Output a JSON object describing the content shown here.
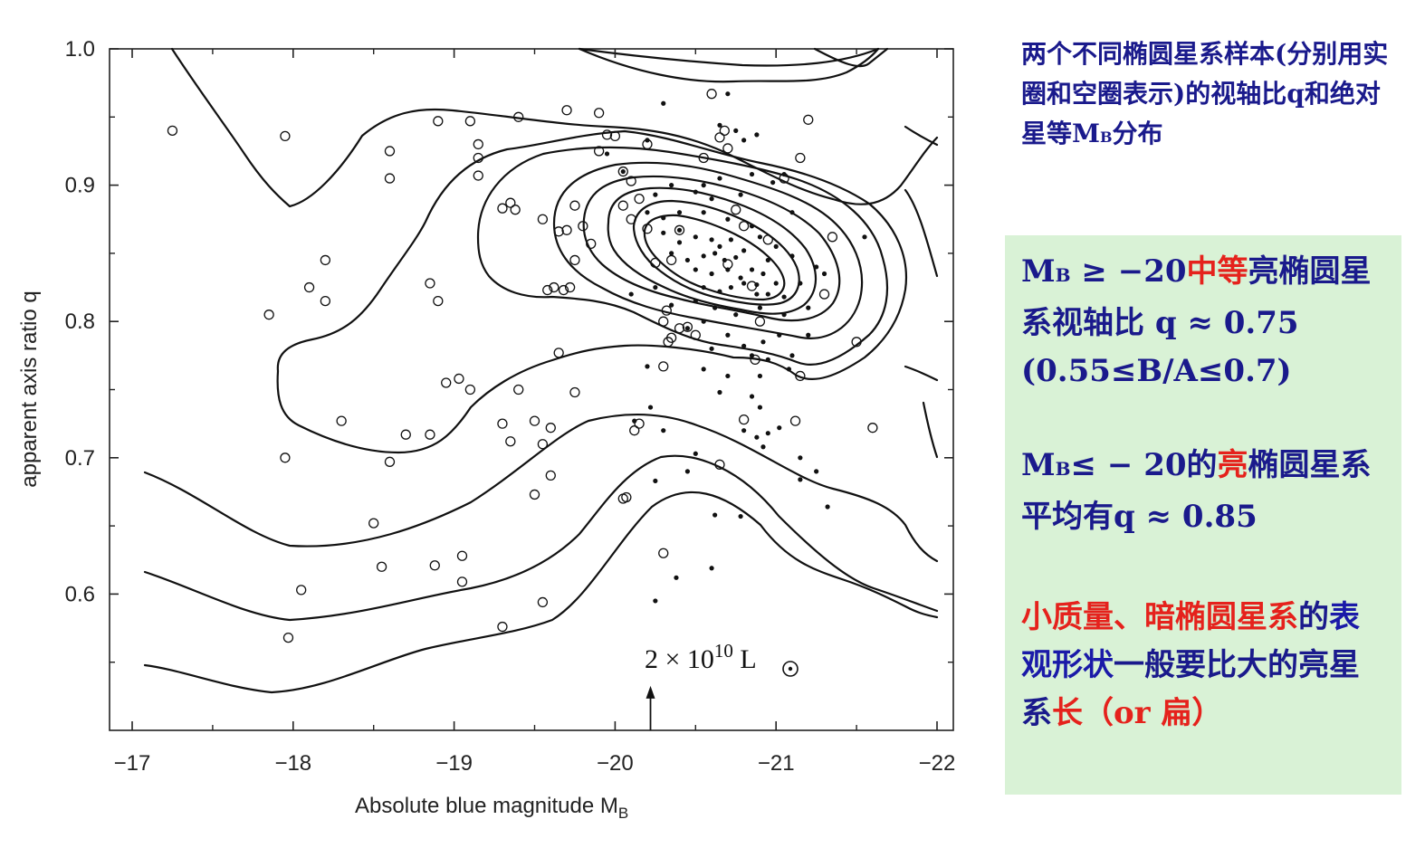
{
  "chart_data": {
    "type": "scatter",
    "xlabel_main": "Absolute blue magnitude  M",
    "xlabel_sub": "B",
    "ylabel": "apparent axis ratio  q",
    "xlim": [
      -16.9,
      -22.1
    ],
    "ylim": [
      0.5,
      1.0
    ],
    "x_ticks": [
      -17,
      -18,
      -19,
      -20,
      -21,
      -22
    ],
    "x_tick_labels": [
      "−17",
      "−18",
      "−19",
      "−20",
      "−21",
      "−22"
    ],
    "y_ticks": [
      0.6,
      0.7,
      0.8,
      0.9,
      1.0
    ],
    "y_tick_labels": [
      "0.6",
      "0.7",
      "0.8",
      "0.9",
      "1.0"
    ],
    "annotation": {
      "prefix": "2 × 10",
      "exponent": "10",
      "suffix": " L",
      "x": -20.22,
      "y_arrow": [
        0.6,
        0.53
      ]
    },
    "series": [
      {
        "marker": "open-circle",
        "points": [
          [
            -17.25,
            0.94
          ],
          [
            -17.95,
            0.936
          ],
          [
            -17.85,
            0.805
          ],
          [
            -18.1,
            0.825
          ],
          [
            -18.2,
            0.845
          ],
          [
            -18.2,
            0.815
          ],
          [
            -18.6,
            0.925
          ],
          [
            -18.6,
            0.905
          ],
          [
            -18.3,
            0.727
          ],
          [
            -17.95,
            0.7
          ],
          [
            -18.6,
            0.697
          ],
          [
            -18.5,
            0.652
          ],
          [
            -18.55,
            0.62
          ],
          [
            -18.05,
            0.603
          ],
          [
            -17.97,
            0.568
          ],
          [
            -18.9,
            0.947
          ],
          [
            -19.1,
            0.947
          ],
          [
            -19.15,
            0.92
          ],
          [
            -19.15,
            0.93
          ],
          [
            -19.15,
            0.907
          ],
          [
            -19.4,
            0.95
          ],
          [
            -19.7,
            0.955
          ],
          [
            -19.9,
            0.953
          ],
          [
            -19.3,
            0.883
          ],
          [
            -19.35,
            0.887
          ],
          [
            -19.38,
            0.882
          ],
          [
            -19.55,
            0.875
          ],
          [
            -19.65,
            0.866
          ],
          [
            -19.7,
            0.867
          ],
          [
            -19.75,
            0.845
          ],
          [
            -19.62,
            0.825
          ],
          [
            -19.72,
            0.825
          ],
          [
            -19.68,
            0.823
          ],
          [
            -19.58,
            0.823
          ],
          [
            -19.75,
            0.885
          ],
          [
            -19.8,
            0.87
          ],
          [
            -19.85,
            0.857
          ],
          [
            -19.9,
            0.925
          ],
          [
            -19.95,
            0.937
          ],
          [
            -20.0,
            0.936
          ],
          [
            -20.05,
            0.885
          ],
          [
            -20.05,
            0.91
          ],
          [
            -20.1,
            0.875
          ],
          [
            -20.2,
            0.93
          ],
          [
            -20.1,
            0.903
          ],
          [
            -20.2,
            0.868
          ],
          [
            -20.15,
            0.89
          ],
          [
            -18.85,
            0.828
          ],
          [
            -18.9,
            0.815
          ],
          [
            -18.95,
            0.755
          ],
          [
            -19.03,
            0.758
          ],
          [
            -19.1,
            0.75
          ],
          [
            -19.4,
            0.75
          ],
          [
            -19.5,
            0.727
          ],
          [
            -19.6,
            0.722
          ],
          [
            -19.75,
            0.748
          ],
          [
            -19.65,
            0.777
          ],
          [
            -18.85,
            0.717
          ],
          [
            -18.7,
            0.717
          ],
          [
            -19.3,
            0.725
          ],
          [
            -19.35,
            0.712
          ],
          [
            -19.55,
            0.71
          ],
          [
            -19.6,
            0.687
          ],
          [
            -19.5,
            0.673
          ],
          [
            -18.88,
            0.621
          ],
          [
            -19.05,
            0.628
          ],
          [
            -19.05,
            0.609
          ],
          [
            -19.55,
            0.594
          ],
          [
            -19.3,
            0.576
          ],
          [
            -20.05,
            0.67
          ],
          [
            -20.07,
            0.671
          ],
          [
            -20.12,
            0.72
          ],
          [
            -20.15,
            0.725
          ],
          [
            -20.3,
            0.63
          ],
          [
            -20.4,
            0.867
          ],
          [
            -20.35,
            0.845
          ],
          [
            -20.25,
            0.843
          ],
          [
            -20.4,
            0.795
          ],
          [
            -20.45,
            0.796
          ],
          [
            -20.35,
            0.788
          ],
          [
            -20.33,
            0.785
          ],
          [
            -20.3,
            0.8
          ],
          [
            -20.32,
            0.808
          ],
          [
            -20.5,
            0.79
          ],
          [
            -20.3,
            0.767
          ],
          [
            -20.6,
            0.967
          ],
          [
            -20.55,
            0.92
          ],
          [
            -20.65,
            0.935
          ],
          [
            -20.68,
            0.94
          ],
          [
            -20.7,
            0.927
          ],
          [
            -20.75,
            0.882
          ],
          [
            -20.8,
            0.87
          ],
          [
            -20.7,
            0.842
          ],
          [
            -20.85,
            0.826
          ],
          [
            -20.95,
            0.86
          ],
          [
            -21.05,
            0.905
          ],
          [
            -21.15,
            0.92
          ],
          [
            -21.2,
            0.948
          ],
          [
            -21.35,
            0.862
          ],
          [
            -21.3,
            0.82
          ],
          [
            -21.5,
            0.785
          ],
          [
            -21.15,
            0.76
          ],
          [
            -21.12,
            0.727
          ],
          [
            -20.9,
            0.8
          ],
          [
            -20.87,
            0.772
          ],
          [
            -20.8,
            0.728
          ],
          [
            -20.65,
            0.695
          ],
          [
            -21.6,
            0.722
          ]
        ]
      },
      {
        "marker": "filled-dot",
        "points": [
          [
            -20.7,
            0.967
          ],
          [
            -20.3,
            0.96
          ],
          [
            -20.65,
            0.944
          ],
          [
            -20.75,
            0.94
          ],
          [
            -20.88,
            0.937
          ],
          [
            -20.2,
            0.933
          ],
          [
            -20.8,
            0.933
          ],
          [
            -20.05,
            0.91
          ],
          [
            -20.35,
            0.9
          ],
          [
            -20.55,
            0.9
          ],
          [
            -20.65,
            0.905
          ],
          [
            -20.85,
            0.908
          ],
          [
            -21.05,
            0.908
          ],
          [
            -20.25,
            0.893
          ],
          [
            -20.5,
            0.895
          ],
          [
            -20.6,
            0.89
          ],
          [
            -20.78,
            0.893
          ],
          [
            -20.98,
            0.902
          ],
          [
            -20.2,
            0.88
          ],
          [
            -20.3,
            0.876
          ],
          [
            -20.4,
            0.88
          ],
          [
            -20.55,
            0.88
          ],
          [
            -20.7,
            0.875
          ],
          [
            -20.85,
            0.87
          ],
          [
            -21.1,
            0.88
          ],
          [
            -20.3,
            0.865
          ],
          [
            -20.4,
            0.858
          ],
          [
            -20.5,
            0.862
          ],
          [
            -20.6,
            0.86
          ],
          [
            -20.65,
            0.855
          ],
          [
            -20.72,
            0.86
          ],
          [
            -20.9,
            0.862
          ],
          [
            -21.0,
            0.855
          ],
          [
            -20.35,
            0.85
          ],
          [
            -20.45,
            0.845
          ],
          [
            -20.55,
            0.848
          ],
          [
            -20.62,
            0.85
          ],
          [
            -20.68,
            0.845
          ],
          [
            -20.75,
            0.847
          ],
          [
            -20.8,
            0.852
          ],
          [
            -20.95,
            0.845
          ],
          [
            -21.1,
            0.848
          ],
          [
            -21.25,
            0.84
          ],
          [
            -21.3,
            0.835
          ],
          [
            -20.5,
            0.838
          ],
          [
            -20.6,
            0.835
          ],
          [
            -20.7,
            0.838
          ],
          [
            -20.78,
            0.832
          ],
          [
            -20.85,
            0.838
          ],
          [
            -20.92,
            0.835
          ],
          [
            -21.0,
            0.828
          ],
          [
            -21.15,
            0.828
          ],
          [
            -20.55,
            0.825
          ],
          [
            -20.65,
            0.822
          ],
          [
            -20.72,
            0.825
          ],
          [
            -20.8,
            0.828
          ],
          [
            -20.88,
            0.82
          ],
          [
            -20.95,
            0.82
          ],
          [
            -21.05,
            0.818
          ],
          [
            -21.2,
            0.81
          ],
          [
            -20.1,
            0.82
          ],
          [
            -20.25,
            0.825
          ],
          [
            -20.35,
            0.812
          ],
          [
            -20.5,
            0.815
          ],
          [
            -20.62,
            0.81
          ],
          [
            -20.75,
            0.805
          ],
          [
            -20.9,
            0.81
          ],
          [
            -21.05,
            0.805
          ],
          [
            -21.2,
            0.79
          ],
          [
            -20.45,
            0.795
          ],
          [
            -20.55,
            0.8
          ],
          [
            -20.7,
            0.79
          ],
          [
            -20.8,
            0.782
          ],
          [
            -20.92,
            0.785
          ],
          [
            -21.02,
            0.79
          ],
          [
            -20.6,
            0.78
          ],
          [
            -20.85,
            0.775
          ],
          [
            -20.95,
            0.772
          ],
          [
            -21.1,
            0.775
          ],
          [
            -20.55,
            0.765
          ],
          [
            -20.7,
            0.76
          ],
          [
            -20.9,
            0.76
          ],
          [
            -21.08,
            0.765
          ],
          [
            -20.2,
            0.767
          ],
          [
            -20.65,
            0.748
          ],
          [
            -20.85,
            0.745
          ],
          [
            -20.9,
            0.737
          ],
          [
            -20.8,
            0.72
          ],
          [
            -20.88,
            0.715
          ],
          [
            -20.95,
            0.718
          ],
          [
            -21.02,
            0.722
          ],
          [
            -20.92,
            0.708
          ],
          [
            -21.15,
            0.7
          ],
          [
            -21.25,
            0.69
          ],
          [
            -20.22,
            0.737
          ],
          [
            -20.12,
            0.727
          ],
          [
            -20.3,
            0.72
          ],
          [
            -20.5,
            0.703
          ],
          [
            -20.45,
            0.69
          ],
          [
            -20.25,
            0.683
          ],
          [
            -21.15,
            0.684
          ],
          [
            -21.32,
            0.664
          ],
          [
            -20.62,
            0.658
          ],
          [
            -20.78,
            0.657
          ],
          [
            -20.6,
            0.619
          ],
          [
            -20.38,
            0.612
          ],
          [
            -20.25,
            0.595
          ],
          [
            -21.55,
            0.862
          ],
          [
            -20.88,
            0.827
          ],
          [
            -20.4,
            0.867
          ],
          [
            -19.95,
            0.923
          ]
        ]
      }
    ]
  },
  "caption": {
    "part1": "两个不同椭圆星系样本(分别用实圈和空圈表示)的视轴比q和绝对星等M",
    "sub": "B",
    "part2": "分布"
  },
  "notes": {
    "n1_prefix": "M",
    "n1_sub": "B",
    "n1_a": " ≥ −20",
    "n1_b": "中等",
    "n1_c": "亮椭圆星系视轴比 q ≈ 0.75 (0.55≤B/A≤0.7)",
    "n2_prefix": "M",
    "n2_sub": "B",
    "n2_a": "≤ − 20的",
    "n2_b": "亮",
    "n2_c": "椭圆星系平均有q ≈ 0.85",
    "n3_a": "小质量、暗椭圆星系",
    "n3_b": "的",
    "n3_c": "表观形状",
    "n3_d": "一般要比大的亮星系",
    "n3_e": "长",
    "n3_f": "（or 扁）"
  }
}
